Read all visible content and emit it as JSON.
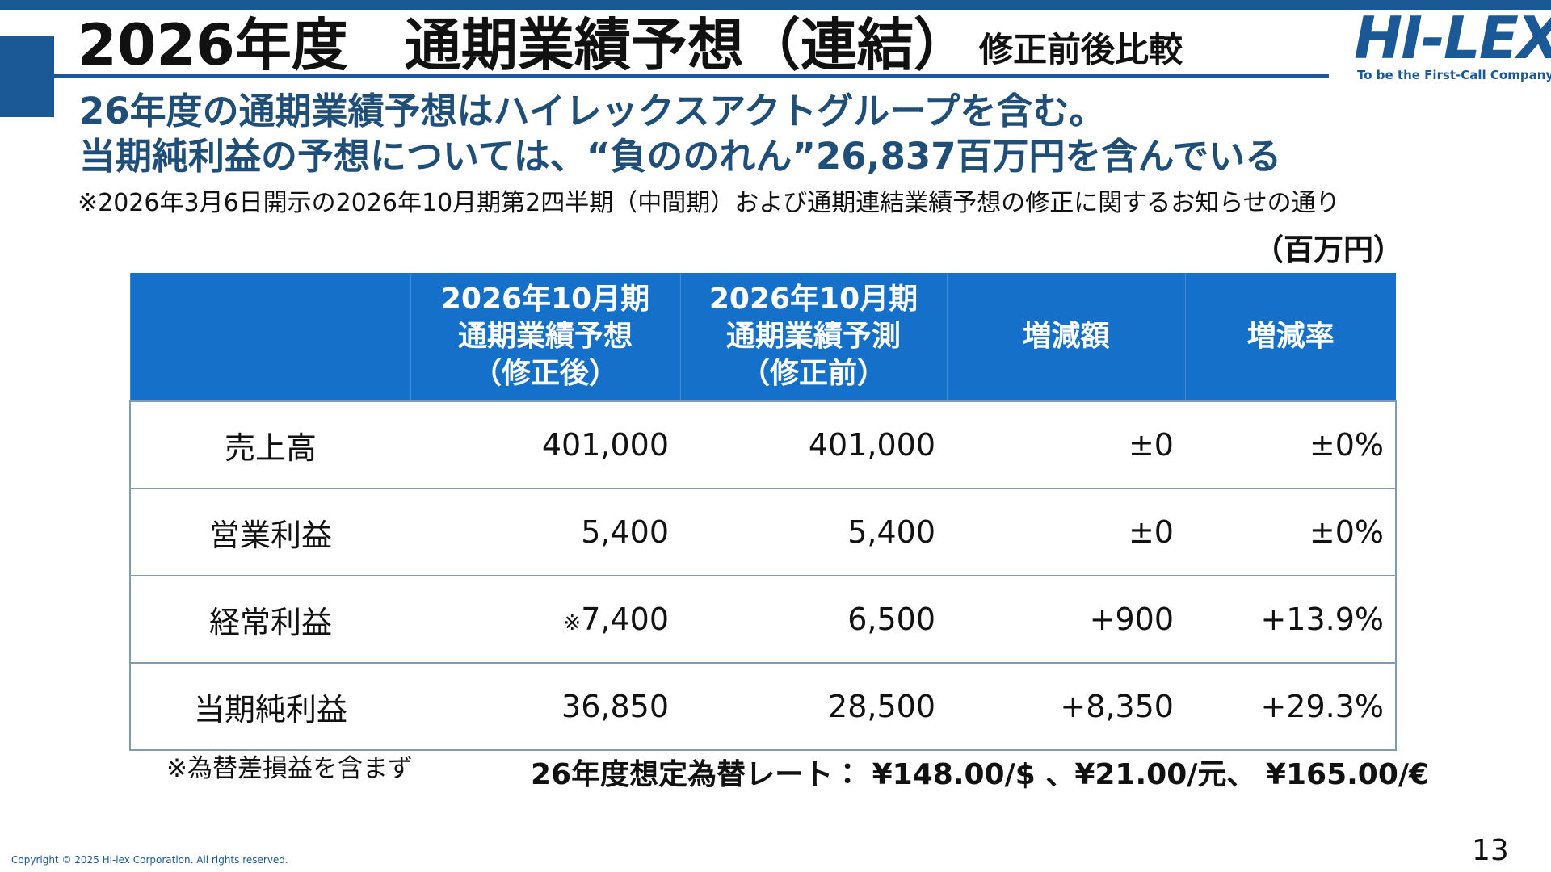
{
  "header": {
    "title": "2026年度　通期業績予想（連結）",
    "subtitle": "修正前後比較",
    "logo": "HI-LEX",
    "tagline": "To be the First-Call Company"
  },
  "headline": [
    "26年度の通期業績予想はハイレックスアクトグループを含む。",
    "当期純利益の予想については、“負ののれん”26,837百万円を含んでいる"
  ],
  "note": "※2026年3月6日開示の2026年10月期第2四半期（中間期）および通期連結業績予想の修正に関するお知らせの通り",
  "unit": "（百万円）",
  "table": {
    "columns": [
      [
        "2026年10月期",
        "通期業績予想",
        "（修正後）"
      ],
      [
        "2026年10月期",
        "通期業績予測",
        "（修正前）"
      ],
      [
        "増減額"
      ],
      [
        "増減率"
      ]
    ],
    "rows": [
      {
        "label": "売上高",
        "cells": [
          "401,000",
          "401,000",
          "±0",
          "±0%"
        ]
      },
      {
        "label": "営業利益",
        "cells": [
          "5,400",
          "5,400",
          "±0",
          "±0%"
        ]
      },
      {
        "label": "経常利益",
        "cells": [
          {
            "mark": "※",
            "text": "7,400"
          },
          "6,500",
          "+900",
          "+13.9%"
        ]
      },
      {
        "label": "当期純利益",
        "cells": [
          "36,850",
          "28,500",
          "+8,350",
          "+29.3%"
        ]
      }
    ]
  },
  "footnote": "※為替差損益を含まず",
  "fx_rate": "26年度想定為替レート： ¥148.00/$ 、¥21.00/元、 ¥165.00/€",
  "copyright": "Copyright © 2025 Hi-lex Corporation. All rights reserved.",
  "page_number": "13"
}
